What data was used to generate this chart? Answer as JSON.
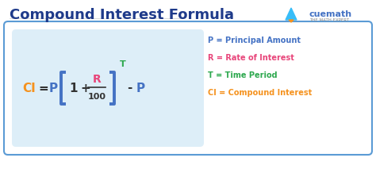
{
  "title": "Compound Interest Formula",
  "title_color": "#1e3a8a",
  "title_fontsize": 13,
  "bg_color": "#ffffff",
  "outer_box_edgecolor": "#5b9bd5",
  "inner_box_color": "#ddeef8",
  "legend_items": [
    {
      "text": "P = Principal Amount",
      "color": "#4472c4"
    },
    {
      "text": "R = Rate of Interest",
      "color": "#e8457a"
    },
    {
      "text": "T = Time Period",
      "color": "#2da84e"
    },
    {
      "text": "CI = Compound Interest",
      "color": "#f5921e"
    }
  ],
  "formula_CI_color": "#f5921e",
  "formula_P_color": "#4472c4",
  "formula_R_color": "#e8457a",
  "formula_T_color": "#2da84e",
  "formula_dark": "#333333",
  "bracket_color": "#4472c4",
  "cuemath_color": "#4472c4",
  "cuemath_sub_color": "#888888",
  "divider_color": "#cccccc"
}
